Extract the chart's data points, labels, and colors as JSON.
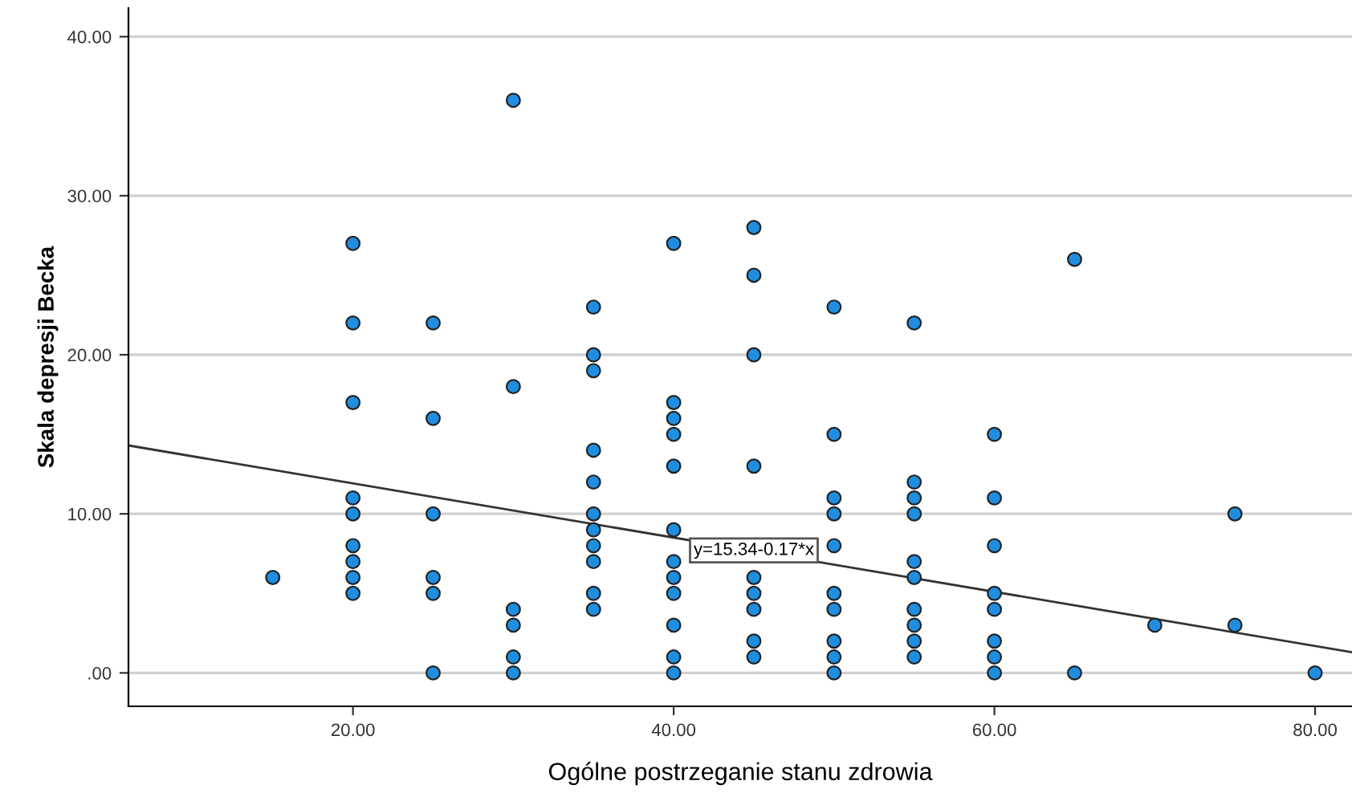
{
  "chart_data": {
    "type": "scatter",
    "xlabel": "Ogólne postrzeganie stanu zdrowia",
    "ylabel": "Skala depresji Becka",
    "xlim": [
      6,
      82.3
    ],
    "ylim": [
      -2.1,
      41.8
    ],
    "xticks": [
      {
        "value": 20,
        "label": "20.00"
      },
      {
        "value": 40,
        "label": "40.00"
      },
      {
        "value": 60,
        "label": "60.00"
      },
      {
        "value": 80,
        "label": "80.00"
      }
    ],
    "yticks": [
      {
        "value": 0,
        "label": ".00"
      },
      {
        "value": 10,
        "label": "10.00"
      },
      {
        "value": 20,
        "label": "20.00"
      },
      {
        "value": 30,
        "label": "30.00"
      },
      {
        "value": 40,
        "label": "40.00"
      }
    ],
    "grid": "y",
    "series": [
      {
        "marker": "circle",
        "color": "#1f8ee0",
        "x": [
          15,
          20,
          20,
          20,
          20,
          20,
          20,
          20,
          20,
          20,
          25,
          25,
          25,
          25,
          25,
          25,
          30,
          30,
          30,
          30,
          30,
          30,
          35,
          35,
          35,
          35,
          35,
          35,
          35,
          35,
          35,
          35,
          35,
          40,
          40,
          40,
          40,
          40,
          40,
          40,
          40,
          40,
          40,
          40,
          40,
          45,
          45,
          45,
          45,
          45,
          45,
          45,
          45,
          45,
          50,
          50,
          50,
          50,
          50,
          50,
          50,
          50,
          50,
          50,
          55,
          55,
          55,
          55,
          55,
          55,
          55,
          55,
          55,
          55,
          60,
          60,
          60,
          60,
          60,
          60,
          60,
          60,
          65,
          65,
          70,
          75,
          75,
          80
        ],
        "values": [
          6,
          27,
          22,
          17,
          11,
          10,
          8,
          7,
          6,
          5,
          22,
          16,
          10,
          6,
          5,
          0,
          36,
          18,
          4,
          3,
          1,
          0,
          23,
          20,
          19,
          14,
          12,
          10,
          9,
          8,
          7,
          5,
          4,
          27,
          17,
          16,
          15,
          13,
          9,
          7,
          6,
          5,
          3,
          1,
          0,
          28,
          25,
          20,
          13,
          6,
          5,
          4,
          2,
          1,
          23,
          15,
          11,
          10,
          8,
          5,
          4,
          2,
          1,
          0,
          22,
          12,
          11,
          10,
          7,
          6,
          4,
          3,
          2,
          1,
          15,
          11,
          8,
          5,
          4,
          2,
          1,
          0,
          26,
          0,
          3,
          10,
          3,
          0
        ]
      },
      {
        "type": "line",
        "color": "#333333",
        "line_style": "solid",
        "x": [
          6,
          82.3
        ],
        "values": [
          14.3,
          1.3
        ]
      }
    ],
    "annotations": [
      {
        "text": "y=15.34-0.17*x",
        "x": 45,
        "y": 7.7
      }
    ]
  }
}
